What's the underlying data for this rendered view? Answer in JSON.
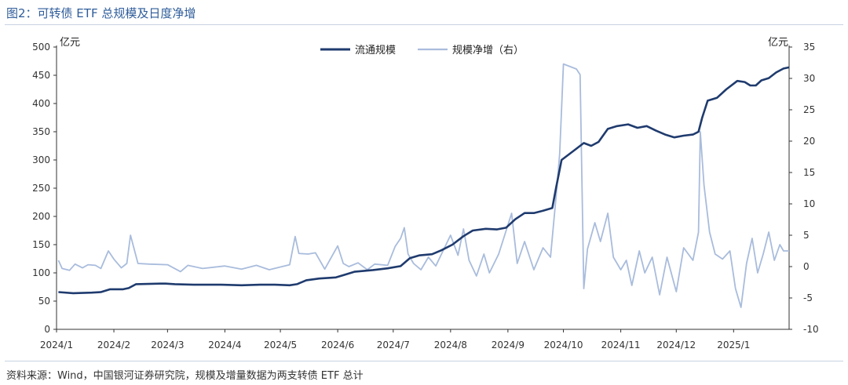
{
  "figure_title": "图2：可转债 ETF 总规模及日度净增",
  "source_note": "资料来源：Wind，中国银河证券研究院，规模及增量数据为两支转债 ETF 总计",
  "colors": {
    "scale_line": "#1f3b6e",
    "inflow_line": "#a9bcdc",
    "title": "#2e5c9a"
  },
  "chart_data": {
    "type": "line",
    "title": "",
    "xlabel": "",
    "y_left_unit": "亿元",
    "y_right_unit": "亿元",
    "ylim_left": [
      0,
      500
    ],
    "ylim_right": [
      -10,
      35
    ],
    "yticks_left": [
      "0",
      "50",
      "100",
      "150",
      "200",
      "250",
      "300",
      "350",
      "400",
      "450",
      "500"
    ],
    "yticks_right": [
      "-10",
      "-5",
      "0",
      "5",
      "10",
      "15",
      "20",
      "25",
      "30",
      "35"
    ],
    "xticks": [
      "2024/1",
      "2024/2",
      "2024/3",
      "2024/4",
      "2024/5",
      "2024/6",
      "2024/7",
      "2024/8",
      "2024/9",
      "2024/10",
      "2024/11",
      "2024/12",
      "2025/1"
    ],
    "x_range": [
      "2024-01-01",
      "2025-01-31"
    ],
    "grid": false,
    "legend_position": "top-center",
    "series": [
      {
        "name": "流通规模",
        "axis": "left",
        "points": [
          [
            "2024-01-02",
            66
          ],
          [
            "2024-01-10",
            64
          ],
          [
            "2024-01-20",
            65
          ],
          [
            "2024-01-25",
            66
          ],
          [
            "2024-01-30",
            71
          ],
          [
            "2024-02-06",
            71
          ],
          [
            "2024-02-09",
            73
          ],
          [
            "2024-02-13",
            80
          ],
          [
            "2024-02-26",
            81
          ],
          [
            "2024-02-29",
            81
          ],
          [
            "2024-03-05",
            80
          ],
          [
            "2024-03-15",
            79
          ],
          [
            "2024-03-30",
            79
          ],
          [
            "2024-04-10",
            78
          ],
          [
            "2024-04-20",
            79
          ],
          [
            "2024-04-28",
            79
          ],
          [
            "2024-05-06",
            78
          ],
          [
            "2024-05-10",
            80
          ],
          [
            "2024-05-15",
            87
          ],
          [
            "2024-05-22",
            90
          ],
          [
            "2024-05-31",
            92
          ],
          [
            "2024-06-05",
            97
          ],
          [
            "2024-06-10",
            102
          ],
          [
            "2024-06-20",
            105
          ],
          [
            "2024-06-28",
            108
          ],
          [
            "2024-07-05",
            112
          ],
          [
            "2024-07-10",
            126
          ],
          [
            "2024-07-15",
            131
          ],
          [
            "2024-07-22",
            133
          ],
          [
            "2024-07-27",
            140
          ],
          [
            "2024-08-02",
            150
          ],
          [
            "2024-08-08",
            165
          ],
          [
            "2024-08-13",
            175
          ],
          [
            "2024-08-20",
            178
          ],
          [
            "2024-08-26",
            177
          ],
          [
            "2024-08-31",
            180
          ],
          [
            "2024-09-05",
            195
          ],
          [
            "2024-09-10",
            206
          ],
          [
            "2024-09-15",
            206
          ],
          [
            "2024-09-20",
            210
          ],
          [
            "2024-09-25",
            215
          ],
          [
            "2024-09-27",
            250
          ],
          [
            "2024-09-30",
            300
          ],
          [
            "2024-10-08",
            320
          ],
          [
            "2024-10-12",
            330
          ],
          [
            "2024-10-16",
            325
          ],
          [
            "2024-10-20",
            332
          ],
          [
            "2024-10-25",
            355
          ],
          [
            "2024-10-30",
            360
          ],
          [
            "2024-11-05",
            363
          ],
          [
            "2024-11-10",
            357
          ],
          [
            "2024-11-15",
            360
          ],
          [
            "2024-11-20",
            352
          ],
          [
            "2024-11-25",
            345
          ],
          [
            "2024-11-30",
            340
          ],
          [
            "2024-12-05",
            343
          ],
          [
            "2024-12-10",
            345
          ],
          [
            "2024-12-13",
            350
          ],
          [
            "2024-12-15",
            375
          ],
          [
            "2024-12-18",
            405
          ],
          [
            "2024-12-23",
            410
          ],
          [
            "2024-12-28",
            425
          ],
          [
            "2025-01-03",
            440
          ],
          [
            "2025-01-07",
            438
          ],
          [
            "2025-01-10",
            432
          ],
          [
            "2025-01-13",
            432
          ],
          [
            "2025-01-16",
            441
          ],
          [
            "2025-01-20",
            445
          ],
          [
            "2025-01-24",
            455
          ],
          [
            "2025-01-28",
            462
          ],
          [
            "2025-01-31",
            464
          ]
        ]
      },
      {
        "name": "规模净增（右）",
        "axis": "right",
        "points": [
          [
            "2024-01-02",
            1.0
          ],
          [
            "2024-01-04",
            -0.3
          ],
          [
            "2024-01-08",
            -0.6
          ],
          [
            "2024-01-11",
            0.4
          ],
          [
            "2024-01-15",
            -0.2
          ],
          [
            "2024-01-18",
            0.3
          ],
          [
            "2024-01-22",
            0.2
          ],
          [
            "2024-01-25",
            -0.3
          ],
          [
            "2024-01-29",
            2.5
          ],
          [
            "2024-02-01",
            1.2
          ],
          [
            "2024-02-05",
            -0.2
          ],
          [
            "2024-02-08",
            0.5
          ],
          [
            "2024-02-10",
            5.0
          ],
          [
            "2024-02-14",
            0.5
          ],
          [
            "2024-02-20",
            0.4
          ],
          [
            "2024-03-01",
            0.3
          ],
          [
            "2024-03-08",
            -0.8
          ],
          [
            "2024-03-12",
            0.2
          ],
          [
            "2024-03-20",
            -0.3
          ],
          [
            "2024-04-01",
            0.1
          ],
          [
            "2024-04-10",
            -0.4
          ],
          [
            "2024-04-18",
            0.2
          ],
          [
            "2024-04-25",
            -0.5
          ],
          [
            "2024-05-06",
            0.3
          ],
          [
            "2024-05-09",
            4.8
          ],
          [
            "2024-05-11",
            2.1
          ],
          [
            "2024-05-16",
            2.0
          ],
          [
            "2024-05-20",
            2.2
          ],
          [
            "2024-05-25",
            -0.4
          ],
          [
            "2024-06-01",
            3.3
          ],
          [
            "2024-06-04",
            0.5
          ],
          [
            "2024-06-07",
            0.0
          ],
          [
            "2024-06-12",
            0.6
          ],
          [
            "2024-06-17",
            -0.5
          ],
          [
            "2024-06-21",
            0.4
          ],
          [
            "2024-06-28",
            0.2
          ],
          [
            "2024-07-02",
            3.2
          ],
          [
            "2024-07-05",
            4.5
          ],
          [
            "2024-07-07",
            6.2
          ],
          [
            "2024-07-09",
            2.0
          ],
          [
            "2024-07-12",
            0.5
          ],
          [
            "2024-07-16",
            -0.5
          ],
          [
            "2024-07-20",
            1.5
          ],
          [
            "2024-07-24",
            0.1
          ],
          [
            "2024-08-01",
            5.0
          ],
          [
            "2024-08-05",
            1.8
          ],
          [
            "2024-08-08",
            6.0
          ],
          [
            "2024-08-11",
            1.0
          ],
          [
            "2024-08-15",
            -1.5
          ],
          [
            "2024-08-19",
            2.0
          ],
          [
            "2024-08-22",
            -1.0
          ],
          [
            "2024-08-27",
            2.0
          ],
          [
            "2024-09-03",
            8.5
          ],
          [
            "2024-09-06",
            0.5
          ],
          [
            "2024-09-10",
            4.0
          ],
          [
            "2024-09-15",
            -0.5
          ],
          [
            "2024-09-20",
            3.0
          ],
          [
            "2024-09-24",
            1.5
          ],
          [
            "2024-09-27",
            11.0
          ],
          [
            "2024-09-29",
            18.0
          ],
          [
            "2024-10-01",
            32.3
          ],
          [
            "2024-10-08",
            31.5
          ],
          [
            "2024-10-10",
            30.6
          ],
          [
            "2024-10-12",
            -3.5
          ],
          [
            "2024-10-14",
            2.8
          ],
          [
            "2024-10-18",
            7.0
          ],
          [
            "2024-10-21",
            4.0
          ],
          [
            "2024-10-25",
            8.5
          ],
          [
            "2024-10-28",
            1.5
          ],
          [
            "2024-11-01",
            -0.5
          ],
          [
            "2024-11-04",
            1.0
          ],
          [
            "2024-11-07",
            -3.0
          ],
          [
            "2024-11-11",
            2.5
          ],
          [
            "2024-11-14",
            -1.0
          ],
          [
            "2024-11-18",
            1.5
          ],
          [
            "2024-11-22",
            -4.5
          ],
          [
            "2024-11-26",
            1.5
          ],
          [
            "2024-12-01",
            -4.0
          ],
          [
            "2024-12-05",
            3.0
          ],
          [
            "2024-12-10",
            1.0
          ],
          [
            "2024-12-13",
            5.5
          ],
          [
            "2024-12-14",
            21.5
          ],
          [
            "2024-12-16",
            13.0
          ],
          [
            "2024-12-19",
            5.5
          ],
          [
            "2024-12-22",
            2.0
          ],
          [
            "2024-12-26",
            1.2
          ],
          [
            "2024-12-30",
            2.5
          ],
          [
            "2025-01-02",
            -3.5
          ],
          [
            "2025-01-05",
            -6.5
          ],
          [
            "2025-01-08",
            0.5
          ],
          [
            "2025-01-11",
            4.5
          ],
          [
            "2025-01-14",
            -1.0
          ],
          [
            "2025-01-17",
            2.0
          ],
          [
            "2025-01-20",
            5.5
          ],
          [
            "2025-01-23",
            1.0
          ],
          [
            "2025-01-26",
            3.5
          ],
          [
            "2025-01-28",
            2.5
          ],
          [
            "2025-01-31",
            2.5
          ]
        ]
      }
    ]
  }
}
